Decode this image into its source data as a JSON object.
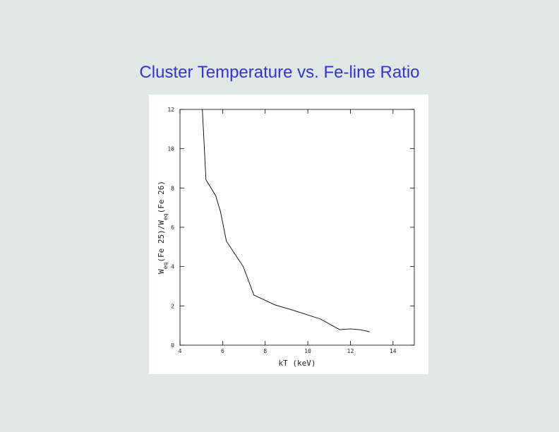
{
  "chart_data": {
    "type": "line",
    "title": "Cluster Temperature vs. Fe-line Ratio",
    "xlabel": "kT (keV)",
    "ylabel": [
      {
        "text": "W"
      },
      {
        "text": "eq",
        "sub": true
      },
      {
        "text": "(Fe 25)/W"
      },
      {
        "text": "eq",
        "sub": true
      },
      {
        "text": "(Fe 26)"
      }
    ],
    "x": [
      5.05,
      5.22,
      5.68,
      5.9,
      6.18,
      6.97,
      7.47,
      8.46,
      9.45,
      10.6,
      11.5,
      12.0,
      12.5,
      12.9
    ],
    "values": [
      12,
      8.42,
      7.6,
      6.8,
      5.29,
      4.0,
      2.55,
      2.05,
      1.73,
      1.33,
      0.79,
      0.83,
      0.78,
      0.68
    ],
    "color": "#000000",
    "xlim": [
      4,
      15
    ],
    "xticks": [
      4,
      6,
      8,
      10,
      12,
      14
    ],
    "ylim": [
      0,
      12
    ],
    "yticks": [
      0,
      2,
      4,
      6,
      8,
      10,
      12
    ]
  }
}
